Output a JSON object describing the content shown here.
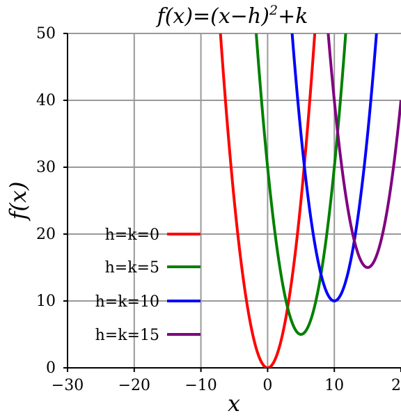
{
  "chart_data": {
    "type": "line",
    "title_parts": [
      "f(x)=(x−h)",
      "2",
      "+k"
    ],
    "xlabel": "x",
    "ylabel": "f(x)",
    "xlim": [
      -30,
      20
    ],
    "ylim": [
      0,
      50
    ],
    "x_ticks": [
      -30,
      -20,
      -10,
      0,
      10,
      20
    ],
    "y_ticks": [
      0,
      10,
      20,
      30,
      40,
      50
    ],
    "x_tick_labels": [
      "−30",
      "−20",
      "−10",
      "0",
      "10",
      "20"
    ],
    "y_tick_labels": [
      "0",
      "10",
      "20",
      "30",
      "40",
      "50"
    ],
    "grid": true,
    "legend_position": "bottom-left",
    "series": [
      {
        "name": "h=k=0",
        "h": 0,
        "k": 0,
        "color": "#ff0000"
      },
      {
        "name": "h=k=5",
        "h": 5,
        "k": 5,
        "color": "#008000"
      },
      {
        "name": "h=k=10",
        "h": 10,
        "k": 10,
        "color": "#0000ff"
      },
      {
        "name": "h=k=15",
        "h": 15,
        "k": 15,
        "color": "#800080"
      }
    ]
  }
}
